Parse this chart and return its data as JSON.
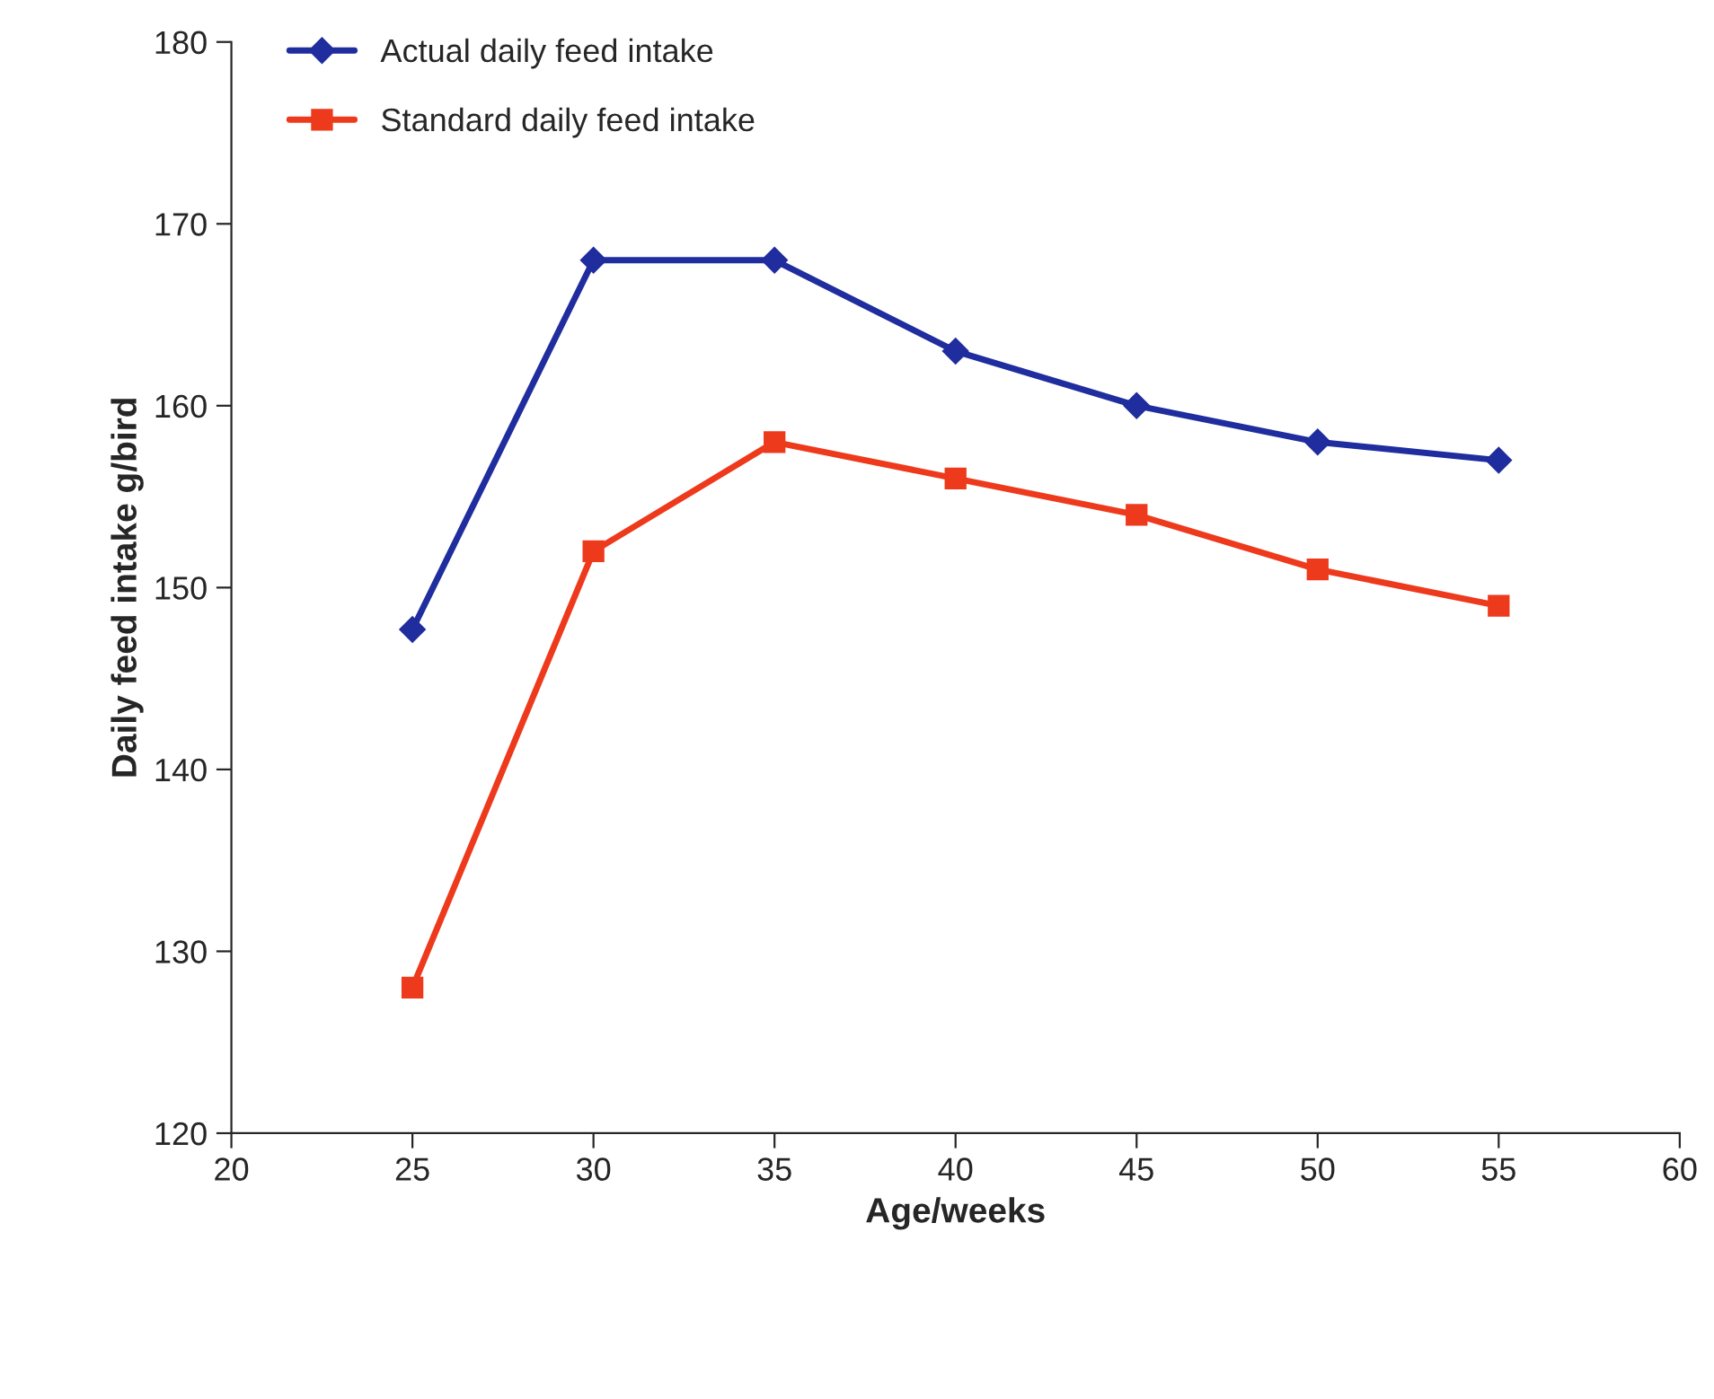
{
  "chart_data": {
    "type": "line",
    "xlabel": "Age/weeks",
    "ylabel": "Daily feed intake g/bird",
    "x": [
      25,
      30,
      35,
      40,
      45,
      50,
      55
    ],
    "series": [
      {
        "name": "Actual daily feed intake",
        "color": "#1f2d9e",
        "marker": "diamond",
        "values": [
          147.7,
          168,
          168,
          163,
          160,
          158,
          157
        ]
      },
      {
        "name": "Standard daily feed intake",
        "color": "#ee3a1c",
        "marker": "square",
        "values": [
          128,
          152,
          158,
          156,
          154,
          151,
          149
        ]
      }
    ],
    "xlim": [
      20,
      60
    ],
    "xticks": [
      20,
      25,
      30,
      35,
      40,
      45,
      50,
      55,
      60
    ],
    "ylim": [
      120,
      180
    ],
    "yticks": [
      120,
      130,
      140,
      150,
      160,
      170,
      180
    ],
    "grid": false,
    "legend": "top left",
    "line_style": "solid"
  }
}
